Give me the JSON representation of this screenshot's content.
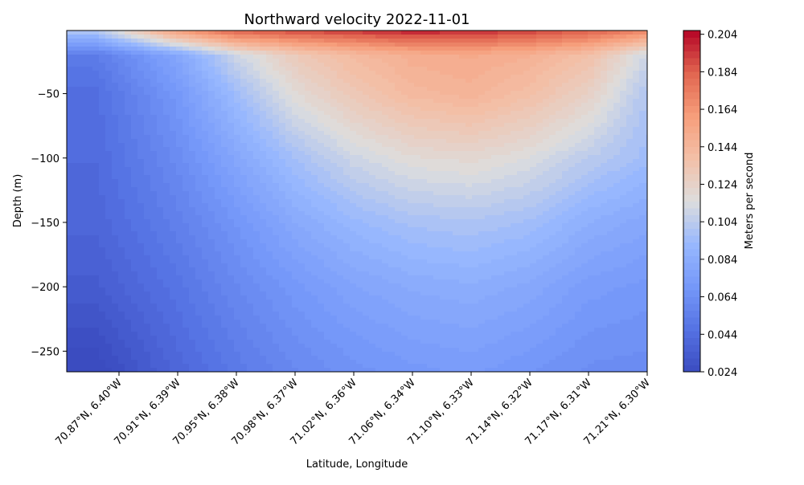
{
  "chart_data": {
    "type": "heatmap",
    "title": "Northward velocity 2022-11-01",
    "xlabel": "Latitude, Longitude",
    "ylabel": "Depth (m)",
    "colorbar_label": "Meters per second",
    "colormap": "coolwarm",
    "ylim": [
      -266,
      -1
    ],
    "y_ticks": [
      -50,
      -100,
      -150,
      -200,
      -250
    ],
    "y_tick_labels": [
      "−50",
      "−100",
      "−150",
      "−200",
      "−250"
    ],
    "x_ticks": [
      "70.87°N, 6.40°W",
      "70.91°N, 6.39°W",
      "70.95°N, 6.38°W",
      "70.98°N, 6.37°W",
      "71.02°N, 6.36°W",
      "71.06°N, 6.34°W",
      "71.10°N, 6.33°W",
      "71.14°N, 6.32°W",
      "71.17°N, 6.31°W",
      "71.21°N, 6.30°W"
    ],
    "colorbar_range": [
      0.024,
      0.206
    ],
    "colorbar_ticks": [
      0.024,
      0.044,
      0.064,
      0.084,
      0.104,
      0.124,
      0.144,
      0.164,
      0.184,
      0.204
    ],
    "colorbar_tick_labels": [
      "0.024",
      "0.044",
      "0.064",
      "0.084",
      "0.104",
      "0.124",
      "0.144",
      "0.164",
      "0.184",
      "0.204"
    ],
    "field_description": "velocity maximum ~0.20 m/s at surface near 71.10°N; minimum ~0.024 m/s at depth on left edge",
    "stations": [
      "70.87°N, 6.40°W",
      "70.91°N, 6.39°W",
      "70.95°N, 6.38°W",
      "70.98°N, 6.37°W",
      "71.02°N, 6.36°W",
      "71.06°N, 6.34°W",
      "71.10°N, 6.33°W",
      "71.14°N, 6.32°W",
      "71.17°N, 6.31°W",
      "71.21°N, 6.30°W"
    ],
    "depths": [
      -1,
      -20,
      -50,
      -100,
      -150,
      -200,
      -266
    ],
    "values": [
      [
        0.118,
        0.16,
        0.185,
        0.19,
        0.195,
        0.2,
        0.198,
        0.192,
        0.185,
        0.17
      ],
      [
        0.06,
        0.08,
        0.11,
        0.13,
        0.142,
        0.15,
        0.152,
        0.148,
        0.138,
        0.11
      ],
      [
        0.052,
        0.07,
        0.095,
        0.118,
        0.132,
        0.142,
        0.146,
        0.138,
        0.125,
        0.1
      ],
      [
        0.048,
        0.062,
        0.08,
        0.097,
        0.11,
        0.118,
        0.12,
        0.115,
        0.104,
        0.095
      ],
      [
        0.044,
        0.055,
        0.068,
        0.082,
        0.092,
        0.098,
        0.1,
        0.096,
        0.086,
        0.08
      ],
      [
        0.038,
        0.048,
        0.06,
        0.07,
        0.078,
        0.083,
        0.085,
        0.081,
        0.073,
        0.07
      ],
      [
        0.026,
        0.04,
        0.051,
        0.06,
        0.066,
        0.07,
        0.072,
        0.068,
        0.063,
        0.062
      ]
    ]
  }
}
